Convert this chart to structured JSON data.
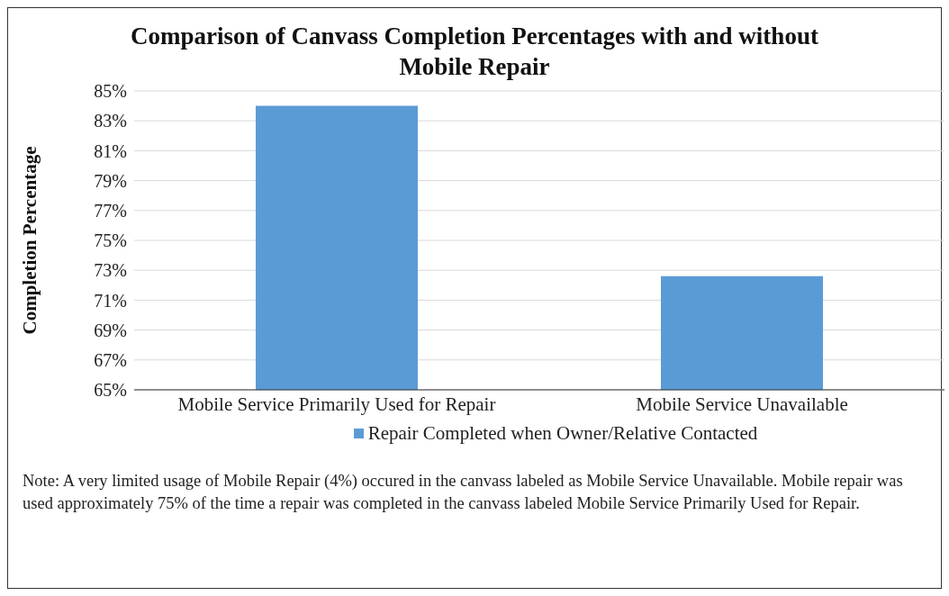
{
  "chart_data": {
    "type": "bar",
    "title": "Comparison of Canvass Completion Percentages with and without Mobile Repair",
    "ylabel": "Completion Percentage",
    "categories": [
      "Mobile Service Primarily Used for Repair",
      "Mobile Service Unavailable"
    ],
    "series": [
      {
        "name": "Repair Completed when Owner/Relative Contacted",
        "color": "#5b9bd5",
        "values": [
          84,
          72.6
        ]
      }
    ],
    "ylim": [
      65,
      85
    ],
    "yticks": [
      {
        "value": 65,
        "label": "65%"
      },
      {
        "value": 67,
        "label": "67%"
      },
      {
        "value": 69,
        "label": "69%"
      },
      {
        "value": 71,
        "label": "71%"
      },
      {
        "value": 73,
        "label": "73%"
      },
      {
        "value": 75,
        "label": "75%"
      },
      {
        "value": 77,
        "label": "77%"
      },
      {
        "value": 79,
        "label": "79%"
      },
      {
        "value": 81,
        "label": "81%"
      },
      {
        "value": 83,
        "label": "83%"
      },
      {
        "value": 85,
        "label": "85%"
      }
    ],
    "grid": "y",
    "legend": "bottom",
    "annotations": [
      "Note: A very limited usage of Mobile Repair (4%) occured in the canvass labeled as Mobile Service Unavailable.  Mobile repair was used approximately 75% of the time a repair was completed in the canvass labeled Mobile Service Primarily Used for Repair."
    ]
  }
}
